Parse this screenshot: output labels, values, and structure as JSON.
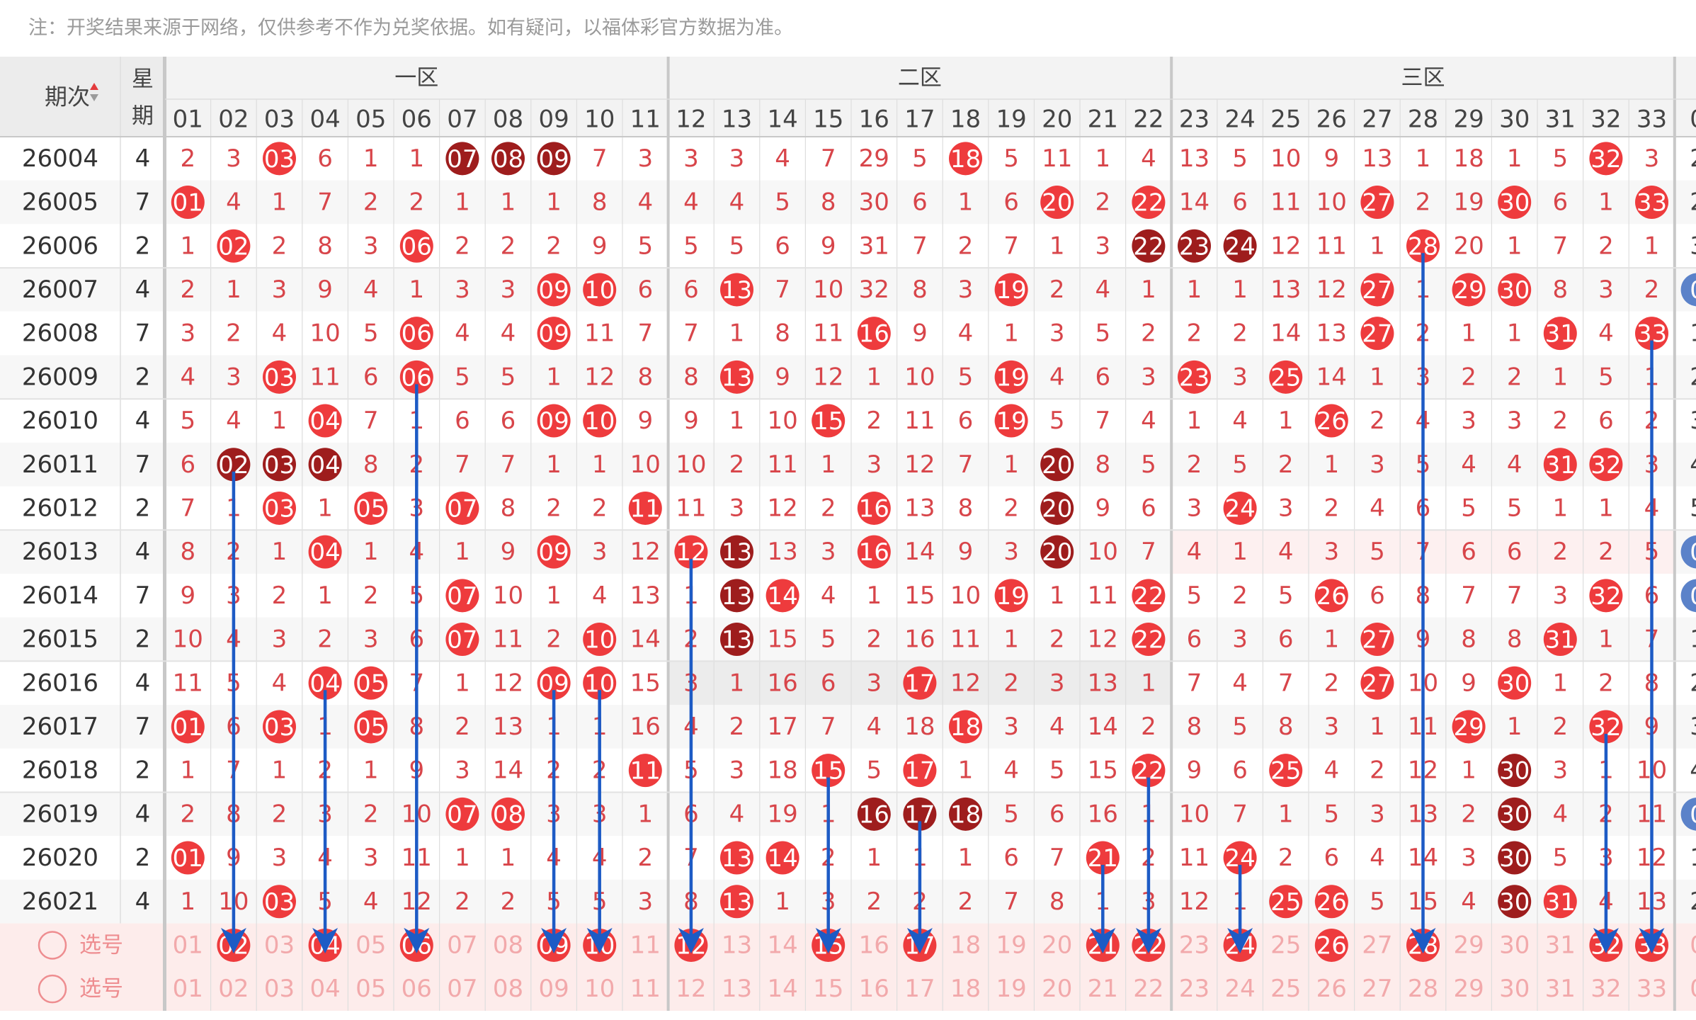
{
  "notice": "注：开奖结果来源于网络，仅供参考不作为兑奖依据。如有疑问，以福体彩官方数据为准。",
  "header": {
    "period_label": "期次",
    "week_label_top": "星",
    "week_label_bottom": "期",
    "zones": [
      "一区",
      "二区",
      "三区"
    ],
    "columns": [
      "01",
      "02",
      "03",
      "04",
      "05",
      "06",
      "07",
      "08",
      "09",
      "10",
      "11",
      "12",
      "13",
      "14",
      "15",
      "16",
      "17",
      "18",
      "19",
      "20",
      "21",
      "22",
      "23",
      "24",
      "25",
      "26",
      "27",
      "28",
      "29",
      "30",
      "31",
      "32",
      "33"
    ],
    "cut_col_label": "0"
  },
  "colors": {
    "accent_red": "#ee3b3d",
    "dark_red": "#9e1d1d",
    "miss_text": "#d8454a",
    "select_bg": "#fdeceb",
    "select_text": "#f2a9ab",
    "arrow_blue": "#1d5bc5",
    "edge_blue": "#5b82c9"
  },
  "rows": [
    {
      "period": "26004",
      "week": "4",
      "cells": [
        "2",
        "3",
        "03",
        "6",
        "1",
        "1",
        "07",
        "08",
        "09",
        "7",
        "3",
        "3",
        "3",
        "4",
        "7",
        "29",
        "5",
        "18",
        "5",
        "11",
        "1",
        "4",
        "13",
        "5",
        "10",
        "9",
        "13",
        "1",
        "18",
        "1",
        "5",
        "32",
        "3"
      ],
      "cut": "2",
      "dark": [
        7,
        8,
        9
      ],
      "cut_ball": false
    },
    {
      "period": "26005",
      "week": "7",
      "cells": [
        "01",
        "4",
        "1",
        "7",
        "2",
        "2",
        "1",
        "1",
        "1",
        "8",
        "4",
        "4",
        "4",
        "5",
        "8",
        "30",
        "6",
        "1",
        "6",
        "20",
        "2",
        "22",
        "14",
        "6",
        "11",
        "10",
        "27",
        "2",
        "19",
        "30",
        "6",
        "1",
        "33"
      ],
      "cut": "2",
      "dark": [],
      "cut_ball": false
    },
    {
      "period": "26006",
      "week": "2",
      "cells": [
        "1",
        "02",
        "2",
        "8",
        "3",
        "06",
        "2",
        "2",
        "2",
        "9",
        "5",
        "5",
        "5",
        "6",
        "9",
        "31",
        "7",
        "2",
        "7",
        "1",
        "3",
        "22",
        "23",
        "24",
        "12",
        "11",
        "1",
        "28",
        "20",
        "1",
        "7",
        "2",
        "1"
      ],
      "cut": "3",
      "dark": [
        22,
        23,
        24
      ],
      "cut_ball": false
    },
    {
      "period": "26007",
      "week": "4",
      "cells": [
        "2",
        "1",
        "3",
        "9",
        "4",
        "1",
        "3",
        "3",
        "09",
        "10",
        "6",
        "6",
        "13",
        "7",
        "10",
        "32",
        "8",
        "3",
        "19",
        "2",
        "4",
        "1",
        "1",
        "1",
        "13",
        "12",
        "27",
        "1",
        "29",
        "30",
        "8",
        "3",
        "2"
      ],
      "cut": "0",
      "dark": [],
      "cut_ball": true
    },
    {
      "period": "26008",
      "week": "7",
      "cells": [
        "3",
        "2",
        "4",
        "10",
        "5",
        "06",
        "4",
        "4",
        "09",
        "11",
        "7",
        "7",
        "1",
        "8",
        "11",
        "16",
        "9",
        "4",
        "1",
        "3",
        "5",
        "2",
        "2",
        "2",
        "14",
        "13",
        "27",
        "2",
        "1",
        "1",
        "31",
        "4",
        "33"
      ],
      "cut": "1",
      "dark": [],
      "cut_ball": false
    },
    {
      "period": "26009",
      "week": "2",
      "cells": [
        "4",
        "3",
        "03",
        "11",
        "6",
        "06",
        "5",
        "5",
        "1",
        "12",
        "8",
        "8",
        "13",
        "9",
        "12",
        "1",
        "10",
        "5",
        "19",
        "4",
        "6",
        "3",
        "23",
        "3",
        "25",
        "14",
        "1",
        "3",
        "2",
        "2",
        "1",
        "5",
        "1"
      ],
      "cut": "2",
      "dark": [],
      "cut_ball": false
    },
    {
      "period": "26010",
      "week": "4",
      "cells": [
        "5",
        "4",
        "1",
        "04",
        "7",
        "1",
        "6",
        "6",
        "09",
        "10",
        "9",
        "9",
        "1",
        "10",
        "15",
        "2",
        "11",
        "6",
        "19",
        "5",
        "7",
        "4",
        "1",
        "4",
        "1",
        "26",
        "2",
        "4",
        "3",
        "3",
        "2",
        "6",
        "2"
      ],
      "cut": "3",
      "dark": [],
      "cut_ball": false
    },
    {
      "period": "26011",
      "week": "7",
      "cells": [
        "6",
        "02",
        "03",
        "04",
        "8",
        "2",
        "7",
        "7",
        "1",
        "1",
        "10",
        "10",
        "2",
        "11",
        "1",
        "3",
        "12",
        "7",
        "1",
        "20",
        "8",
        "5",
        "2",
        "5",
        "2",
        "1",
        "3",
        "5",
        "4",
        "4",
        "31",
        "32",
        "3"
      ],
      "cut": "4",
      "dark": [
        2,
        3,
        4,
        20
      ],
      "cut_ball": false
    },
    {
      "period": "26012",
      "week": "2",
      "cells": [
        "7",
        "1",
        "03",
        "1",
        "05",
        "3",
        "07",
        "8",
        "2",
        "2",
        "11",
        "11",
        "3",
        "12",
        "2",
        "16",
        "13",
        "8",
        "2",
        "20",
        "9",
        "6",
        "3",
        "24",
        "3",
        "2",
        "4",
        "6",
        "5",
        "5",
        "1",
        "1",
        "4"
      ],
      "cut": "5",
      "dark": [
        20
      ],
      "cut_ball": false
    },
    {
      "period": "26013",
      "week": "4",
      "cells": [
        "8",
        "2",
        "1",
        "04",
        "1",
        "4",
        "1",
        "9",
        "09",
        "3",
        "12",
        "12",
        "13",
        "13",
        "3",
        "16",
        "14",
        "9",
        "3",
        "20",
        "10",
        "7",
        "4",
        "1",
        "4",
        "3",
        "5",
        "7",
        "6",
        "6",
        "2",
        "2",
        "5"
      ],
      "cut": "0",
      "dark": [
        13,
        20
      ],
      "cut_ball": true
    },
    {
      "period": "26014",
      "week": "7",
      "cells": [
        "9",
        "3",
        "2",
        "1",
        "2",
        "5",
        "07",
        "10",
        "1",
        "4",
        "13",
        "1",
        "13",
        "14",
        "4",
        "1",
        "15",
        "10",
        "19",
        "1",
        "11",
        "22",
        "5",
        "2",
        "5",
        "26",
        "6",
        "8",
        "7",
        "7",
        "3",
        "32",
        "6"
      ],
      "cut": "0",
      "dark": [
        13
      ],
      "cut_ball": true
    },
    {
      "period": "26015",
      "week": "2",
      "cells": [
        "10",
        "4",
        "3",
        "2",
        "3",
        "6",
        "07",
        "11",
        "2",
        "10",
        "14",
        "2",
        "13",
        "15",
        "5",
        "2",
        "16",
        "11",
        "1",
        "2",
        "12",
        "22",
        "6",
        "3",
        "6",
        "1",
        "27",
        "9",
        "8",
        "8",
        "31",
        "1",
        "7"
      ],
      "cut": "1",
      "dark": [
        13
      ],
      "cut_ball": false
    },
    {
      "period": "26016",
      "week": "4",
      "cells": [
        "11",
        "5",
        "4",
        "04",
        "05",
        "7",
        "1",
        "12",
        "09",
        "10",
        "15",
        "3",
        "1",
        "16",
        "6",
        "3",
        "17",
        "12",
        "2",
        "3",
        "13",
        "1",
        "7",
        "4",
        "7",
        "2",
        "27",
        "10",
        "9",
        "30",
        "1",
        "2",
        "8"
      ],
      "cut": "2",
      "dark": [],
      "cut_ball": false
    },
    {
      "period": "26017",
      "week": "7",
      "cells": [
        "01",
        "6",
        "03",
        "1",
        "05",
        "8",
        "2",
        "13",
        "1",
        "1",
        "16",
        "4",
        "2",
        "17",
        "7",
        "4",
        "18",
        "18",
        "3",
        "4",
        "14",
        "2",
        "8",
        "5",
        "8",
        "3",
        "1",
        "11",
        "29",
        "1",
        "2",
        "32",
        "9"
      ],
      "cut": "3",
      "dark": [],
      "cut_ball": false
    },
    {
      "period": "26018",
      "week": "2",
      "cells": [
        "1",
        "7",
        "1",
        "2",
        "1",
        "9",
        "3",
        "14",
        "2",
        "2",
        "11",
        "5",
        "3",
        "18",
        "15",
        "5",
        "17",
        "1",
        "4",
        "5",
        "15",
        "22",
        "9",
        "6",
        "25",
        "4",
        "2",
        "12",
        "1",
        "30",
        "3",
        "1",
        "10"
      ],
      "cut": "4",
      "dark": [
        30
      ],
      "cut_ball": false
    },
    {
      "period": "26019",
      "week": "4",
      "cells": [
        "2",
        "8",
        "2",
        "3",
        "2",
        "10",
        "07",
        "08",
        "3",
        "3",
        "1",
        "6",
        "4",
        "19",
        "1",
        "16",
        "17",
        "18",
        "5",
        "6",
        "16",
        "1",
        "10",
        "7",
        "1",
        "5",
        "3",
        "13",
        "2",
        "30",
        "4",
        "2",
        "11"
      ],
      "cut": "0",
      "dark": [
        16,
        17,
        18,
        30
      ],
      "cut_ball": true
    },
    {
      "period": "26020",
      "week": "2",
      "cells": [
        "01",
        "9",
        "3",
        "4",
        "3",
        "11",
        "1",
        "1",
        "4",
        "4",
        "2",
        "7",
        "13",
        "14",
        "2",
        "1",
        "1",
        "1",
        "6",
        "7",
        "21",
        "2",
        "11",
        "24",
        "2",
        "6",
        "4",
        "14",
        "3",
        "30",
        "5",
        "3",
        "12"
      ],
      "cut": "1",
      "dark": [
        30
      ],
      "cut_ball": false
    },
    {
      "period": "26021",
      "week": "4",
      "cells": [
        "1",
        "10",
        "03",
        "5",
        "4",
        "12",
        "2",
        "2",
        "5",
        "5",
        "3",
        "8",
        "13",
        "1",
        "3",
        "2",
        "2",
        "2",
        "7",
        "8",
        "1",
        "3",
        "12",
        "1",
        "25",
        "26",
        "5",
        "15",
        "4",
        "30",
        "31",
        "4",
        "13"
      ],
      "cut": "2",
      "dark": [
        30
      ],
      "cut_ball": false
    }
  ],
  "select_rows": [
    {
      "label": "选号",
      "picked": [
        2,
        4,
        6,
        9,
        10,
        12,
        15,
        17,
        21,
        22,
        24,
        26,
        28,
        32,
        33
      ],
      "cut": "0"
    },
    {
      "label": "选号",
      "picked": [],
      "cut": "0"
    }
  ]
}
